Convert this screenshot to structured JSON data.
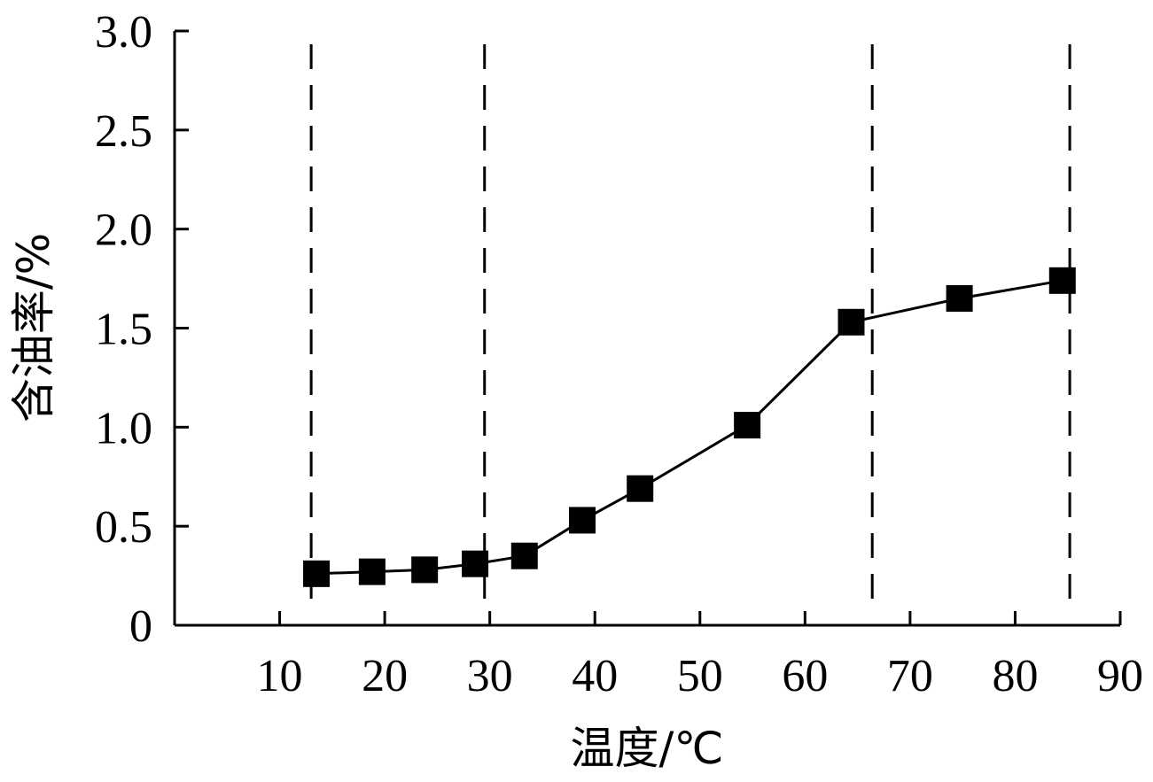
{
  "chart_data": {
    "type": "line",
    "title": "",
    "xlabel": "温度/℃",
    "ylabel": "含油率/%",
    "xlim": [
      0,
      90
    ],
    "ylim": [
      0,
      3.0
    ],
    "x_ticks": [
      10,
      20,
      30,
      40,
      50,
      60,
      70,
      80,
      90
    ],
    "x_tick_labels": [
      "10",
      "20",
      "30",
      "40",
      "50",
      "60",
      "70",
      "80",
      "90"
    ],
    "y_ticks": [
      0,
      0.5,
      1.0,
      1.5,
      2.0,
      2.5,
      3.0
    ],
    "y_tick_labels": [
      "0",
      "0.5",
      "1.0",
      "1.5",
      "2.0",
      "2.5",
      "3.0"
    ],
    "grid": false,
    "legend": "none",
    "marker": "square",
    "line_color": "#000000",
    "series": [
      {
        "x": [
          13.5,
          18.8,
          23.8,
          28.6,
          33.3,
          38.8,
          44.3,
          54.5,
          64.4,
          74.7,
          84.5
        ],
        "y": [
          0.26,
          0.27,
          0.28,
          0.31,
          0.35,
          0.53,
          0.69,
          1.01,
          1.53,
          1.65,
          1.74
        ]
      }
    ],
    "reference_lines": [
      {
        "orientation": "vertical",
        "x": 13,
        "style": "dashed"
      },
      {
        "orientation": "vertical",
        "x": 29.5,
        "style": "dashed"
      },
      {
        "orientation": "vertical",
        "x": 66.4,
        "style": "dashed"
      },
      {
        "orientation": "vertical",
        "x": 85.2,
        "style": "dashed"
      }
    ]
  }
}
